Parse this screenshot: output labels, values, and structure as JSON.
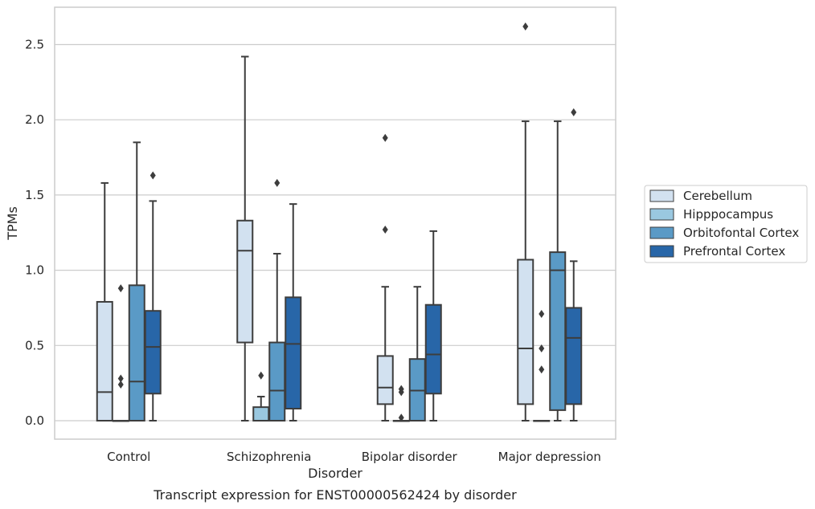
{
  "caption": "Transcript expression for ENST00000562424 by disorder",
  "chart_data": {
    "type": "boxplot",
    "xlabel": "Disorder",
    "ylabel": "TPMs",
    "ylim": [
      -0.13,
      2.76
    ],
    "yticks": [
      0.0,
      0.5,
      1.0,
      1.5,
      2.0,
      2.5
    ],
    "ytick_labels": [
      "0.0",
      "0.5",
      "1.0",
      "1.5",
      "2.0",
      "2.5"
    ],
    "grid": "horizontal",
    "legend_position": "right",
    "categories": [
      "Control",
      "Schizophrenia",
      "Bipolar disorder",
      "Major depression"
    ],
    "series": [
      {
        "name": "Cerebellum",
        "color": "#d2e1f0",
        "boxes": [
          {
            "whislo": 0.0,
            "q1": 0.0,
            "med": 0.19,
            "q3": 0.79,
            "whishi": 1.58,
            "fliers": []
          },
          {
            "whislo": 0.0,
            "q1": 0.52,
            "med": 1.13,
            "q3": 1.33,
            "whishi": 2.42,
            "fliers": []
          },
          {
            "whislo": 0.0,
            "q1": 0.11,
            "med": 0.22,
            "q3": 0.43,
            "whishi": 0.89,
            "fliers": [
              1.27,
              1.88
            ]
          },
          {
            "whislo": 0.0,
            "q1": 0.11,
            "med": 0.48,
            "q3": 1.07,
            "whishi": 1.99,
            "fliers": [
              2.62
            ]
          }
        ]
      },
      {
        "name": "Hipppocampus",
        "color": "#9ac8e0",
        "boxes": [
          {
            "whislo": 0.0,
            "q1": 0.0,
            "med": 0.0,
            "q3": 0.0,
            "whishi": 0.0,
            "fliers": [
              0.24,
              0.28,
              0.88
            ]
          },
          {
            "whislo": 0.0,
            "q1": 0.0,
            "med": 0.0,
            "q3": 0.09,
            "whishi": 0.16,
            "fliers": [
              0.3
            ]
          },
          {
            "whislo": 0.0,
            "q1": 0.0,
            "med": 0.0,
            "q3": 0.0,
            "whishi": 0.0,
            "fliers": [
              0.02,
              0.19,
              0.21
            ]
          },
          {
            "whislo": 0.0,
            "q1": 0.0,
            "med": 0.0,
            "q3": 0.0,
            "whishi": 0.0,
            "fliers": [
              0.34,
              0.48,
              0.71
            ]
          }
        ]
      },
      {
        "name": "Orbitofontal Cortex",
        "color": "#5a9ac6",
        "boxes": [
          {
            "whislo": 0.0,
            "q1": 0.0,
            "med": 0.26,
            "q3": 0.9,
            "whishi": 1.85,
            "fliers": []
          },
          {
            "whislo": 0.0,
            "q1": 0.0,
            "med": 0.2,
            "q3": 0.52,
            "whishi": 1.11,
            "fliers": [
              1.58
            ]
          },
          {
            "whislo": 0.0,
            "q1": 0.0,
            "med": 0.2,
            "q3": 0.41,
            "whishi": 0.89,
            "fliers": []
          },
          {
            "whislo": 0.0,
            "q1": 0.07,
            "med": 1.0,
            "q3": 1.12,
            "whishi": 1.99,
            "fliers": []
          }
        ]
      },
      {
        "name": "Prefrontal Cortex",
        "color": "#2866a8",
        "boxes": [
          {
            "whislo": 0.0,
            "q1": 0.18,
            "med": 0.49,
            "q3": 0.73,
            "whishi": 1.46,
            "fliers": [
              1.63
            ]
          },
          {
            "whislo": 0.0,
            "q1": 0.08,
            "med": 0.51,
            "q3": 0.82,
            "whishi": 1.44,
            "fliers": []
          },
          {
            "whislo": 0.0,
            "q1": 0.18,
            "med": 0.44,
            "q3": 0.77,
            "whishi": 1.26,
            "fliers": []
          },
          {
            "whislo": 0.0,
            "q1": 0.11,
            "med": 0.55,
            "q3": 0.75,
            "whishi": 1.06,
            "fliers": [
              2.05
            ]
          }
        ]
      }
    ]
  }
}
